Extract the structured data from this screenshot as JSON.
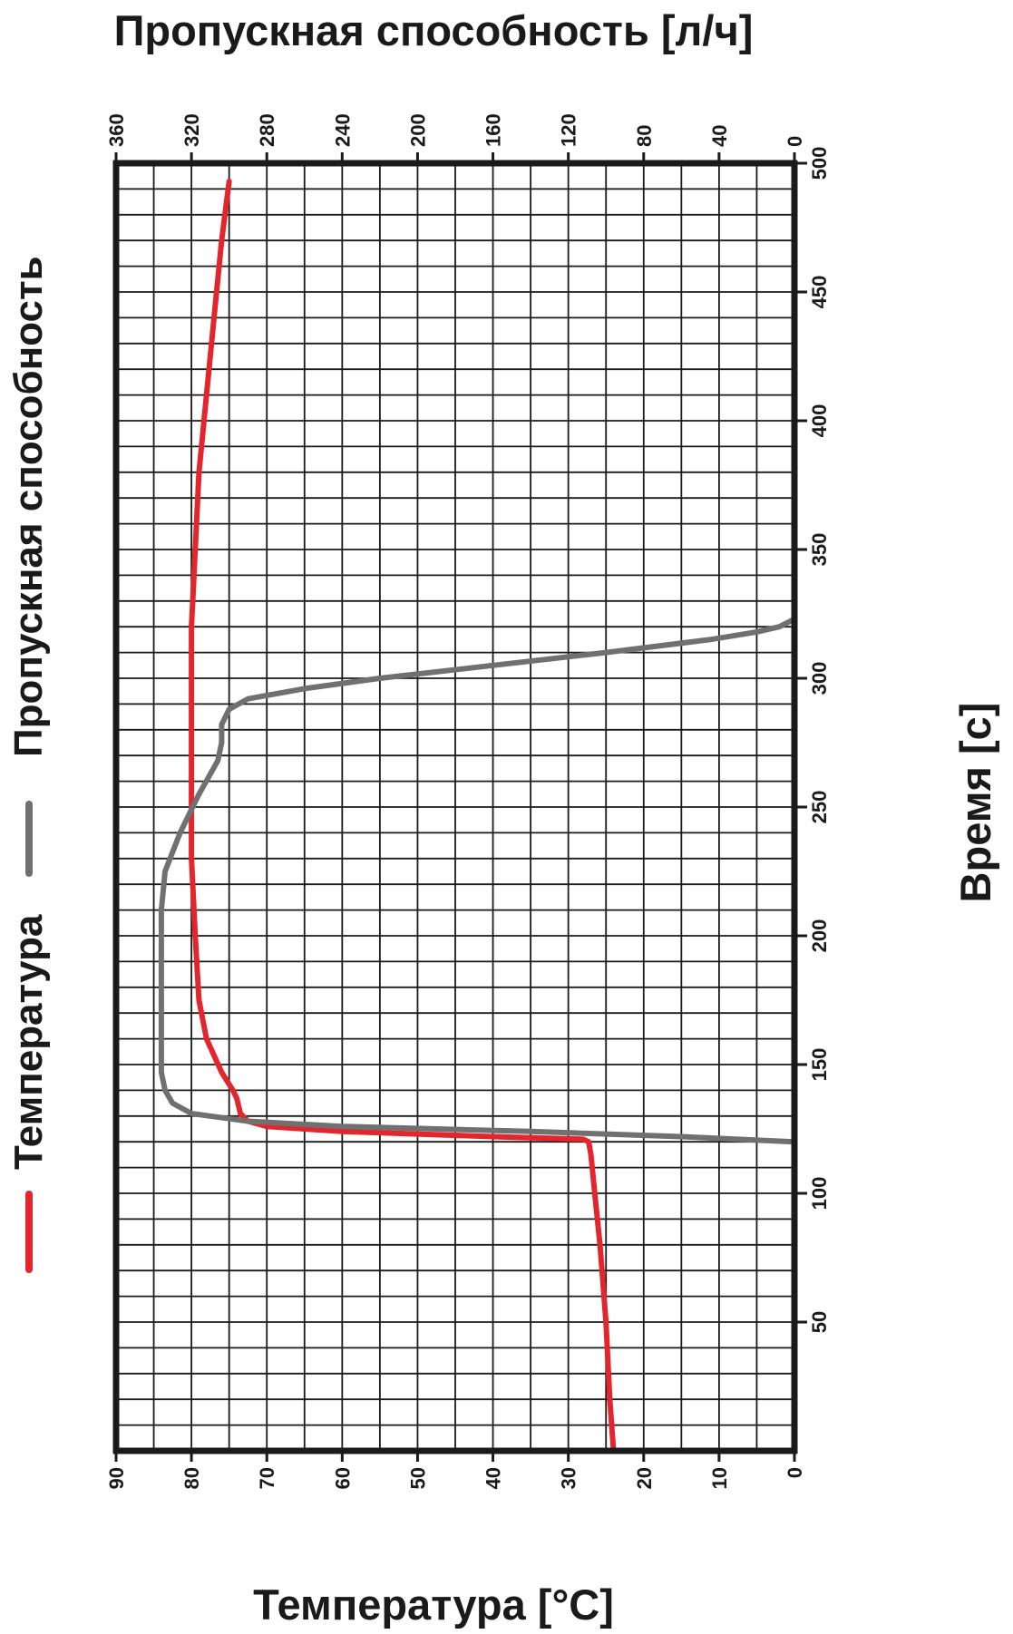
{
  "chart_data": {
    "type": "line",
    "orientation": "rotated-90-ccw",
    "title": "",
    "xlabel": "Время [с]",
    "ylabel": "Температура [°C]",
    "y2label": "Пропускная способность [л/ч]",
    "xlim": [
      0,
      500
    ],
    "ylim": [
      0,
      90
    ],
    "y2lim": [
      0,
      360
    ],
    "x_ticks": [
      "50",
      "100",
      "150",
      "200",
      "250",
      "300",
      "350",
      "400",
      "450",
      "500"
    ],
    "y_ticks": [
      "0",
      "10",
      "20",
      "30",
      "40",
      "50",
      "60",
      "70",
      "80",
      "90"
    ],
    "y2_ticks": [
      "0",
      "40",
      "80",
      "120",
      "160",
      "200",
      "240",
      "280",
      "320",
      "360"
    ],
    "grid": true,
    "legend_position": "left, rotated",
    "legend": [
      "Температура",
      "Пропускная способность"
    ],
    "series": [
      {
        "name": "Температура",
        "axis": "left",
        "color": "#e3262d",
        "points": [
          [
            0,
            24
          ],
          [
            20,
            24.5
          ],
          [
            50,
            25
          ],
          [
            80,
            25.8
          ],
          [
            100,
            26.5
          ],
          [
            115,
            27
          ],
          [
            120,
            27.3
          ],
          [
            121,
            28
          ],
          [
            122,
            40
          ],
          [
            124,
            60
          ],
          [
            126,
            70
          ],
          [
            128,
            72.5
          ],
          [
            131,
            73.5
          ],
          [
            137,
            74
          ],
          [
            140,
            74.5
          ],
          [
            147,
            76
          ],
          [
            160,
            78
          ],
          [
            175,
            79
          ],
          [
            200,
            79.5
          ],
          [
            230,
            80
          ],
          [
            250,
            80
          ],
          [
            270,
            80
          ],
          [
            300,
            80
          ],
          [
            320,
            80
          ],
          [
            350,
            79.5
          ],
          [
            380,
            79
          ],
          [
            410,
            78
          ],
          [
            440,
            77
          ],
          [
            470,
            76
          ],
          [
            493,
            75
          ]
        ]
      },
      {
        "name": "Пропускная способность",
        "axis": "right",
        "color": "#707070",
        "points": [
          [
            120,
            0
          ],
          [
            122,
            60
          ],
          [
            124,
            140
          ],
          [
            126,
            240
          ],
          [
            128,
            290
          ],
          [
            131,
            320
          ],
          [
            135,
            330
          ],
          [
            140,
            334
          ],
          [
            147,
            336
          ],
          [
            170,
            336
          ],
          [
            210,
            336
          ],
          [
            225,
            334
          ],
          [
            240,
            326
          ],
          [
            255,
            316
          ],
          [
            268,
            306
          ],
          [
            275,
            304
          ],
          [
            282,
            304
          ],
          [
            288,
            300
          ],
          [
            292,
            290
          ],
          [
            296,
            260
          ],
          [
            300,
            220
          ],
          [
            305,
            160
          ],
          [
            310,
            100
          ],
          [
            315,
            45
          ],
          [
            318,
            20
          ],
          [
            320,
            8
          ],
          [
            323,
            0
          ]
        ]
      }
    ]
  }
}
